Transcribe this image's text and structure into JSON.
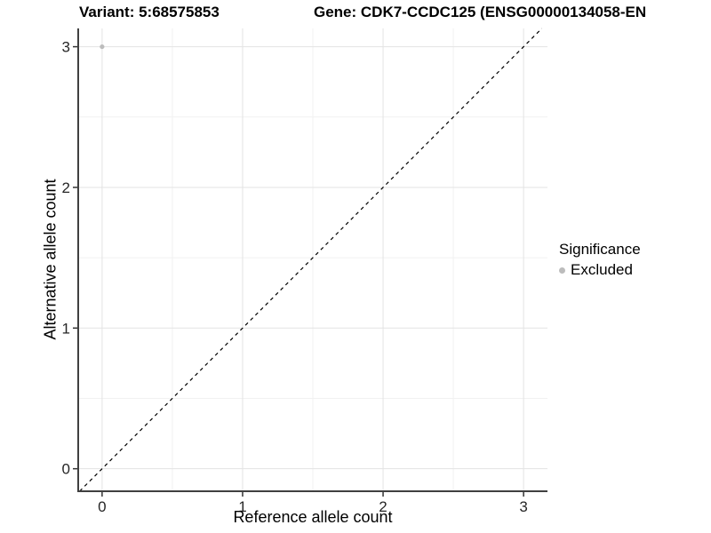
{
  "header": {
    "variant_title": "Variant: 5:68575853",
    "gene_title": "Gene: CDK7-CCDC125 (ENSG00000134058-EN"
  },
  "chart_data": {
    "type": "scatter",
    "xlabel": "Reference allele count",
    "ylabel": "Alternative allele count",
    "x_ticks": [
      0,
      1,
      2,
      3
    ],
    "y_ticks": [
      0,
      1,
      2,
      3
    ],
    "xlim": [
      -0.17,
      3.17
    ],
    "ylim": [
      -0.16,
      3.13
    ],
    "minor_grid_step": 0.5,
    "grid": true,
    "points": [
      {
        "x": 0,
        "y": 3,
        "series": "Excluded"
      }
    ],
    "identity_line": {
      "slope": 1,
      "intercept": 0,
      "style": "dashed",
      "color": "#000000"
    },
    "legend": {
      "title": "Significance",
      "position": "right",
      "items": [
        {
          "label": "Excluded",
          "color": "#bcbcbc"
        }
      ]
    },
    "colors": {
      "point_excluded": "#bcbcbc",
      "grid_major": "#e3e3e3",
      "grid_minor": "#f1f1f1",
      "axis_line": "#404040",
      "tick_mark": "#333333",
      "tick_label": "#262626"
    }
  }
}
